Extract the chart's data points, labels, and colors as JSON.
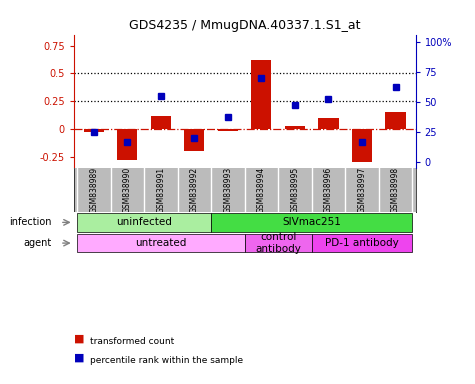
{
  "title": "GDS4235 / MmugDNA.40337.1.S1_at",
  "samples": [
    "GSM838989",
    "GSM838990",
    "GSM838991",
    "GSM838992",
    "GSM838993",
    "GSM838994",
    "GSM838995",
    "GSM838996",
    "GSM838997",
    "GSM838998"
  ],
  "transformed_count": [
    -0.03,
    -0.28,
    0.12,
    -0.2,
    -0.02,
    0.62,
    0.03,
    0.1,
    -0.3,
    0.15
  ],
  "percentile_rank": [
    25,
    17,
    55,
    20,
    38,
    70,
    48,
    53,
    17,
    63
  ],
  "ylim_left": [
    -0.35,
    0.85
  ],
  "ylim_right": [
    -4.375,
    106.25
  ],
  "yticks_left": [
    -0.25,
    0.0,
    0.25,
    0.5,
    0.75
  ],
  "yticks_left_labels": [
    "-0.25",
    "0",
    "0.25",
    "0.5",
    "0.75"
  ],
  "yticks_right": [
    0,
    25,
    50,
    75,
    100
  ],
  "yticks_right_labels": [
    "0",
    "25",
    "50",
    "75",
    "100%"
  ],
  "hlines": [
    0.25,
    0.5
  ],
  "bar_color": "#cc1100",
  "dot_color": "#0000bb",
  "infection_groups": [
    {
      "label": "uninfected",
      "start": 0,
      "end": 4,
      "color": "#aaeea0"
    },
    {
      "label": "SIVmac251",
      "start": 4,
      "end": 10,
      "color": "#44dd44"
    }
  ],
  "agent_groups": [
    {
      "label": "untreated",
      "start": 0,
      "end": 5,
      "color": "#ffaaff"
    },
    {
      "label": "control\nantibody",
      "start": 5,
      "end": 7,
      "color": "#ee66ee"
    },
    {
      "label": "PD-1 antibody",
      "start": 7,
      "end": 10,
      "color": "#ee44ee"
    }
  ],
  "bg_color": "#ffffff",
  "sample_bg_color": "#bbbbbb",
  "plot_bg_color": "#ffffff"
}
